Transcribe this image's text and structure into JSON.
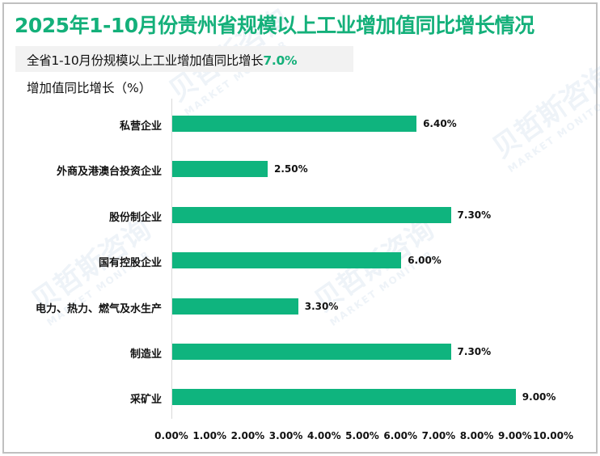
{
  "header": {
    "title": "2025年1-10月份贵州省规模以上工业增加值同比增长情况",
    "subtitle_prefix": "全省1-10月份规模以上工业增加值同比增长",
    "subtitle_value": "7.0%",
    "y_axis_label": "增加值同比增长（%）"
  },
  "watermark": {
    "cn": "贝哲斯咨询",
    "en": "MARKET MONITOR"
  },
  "colors": {
    "title": "#14b07a",
    "bar": "#0fb47e",
    "highlight": "#14b07a"
  },
  "chart_data": {
    "type": "bar",
    "orientation": "horizontal",
    "title": "2025年1-10月份贵州省规模以上工业增加值同比增长情况",
    "subtitle": "全省1-10月份规模以上工业增加值同比增长7.0%",
    "xlabel": "",
    "ylabel": "增加值同比增长（%）",
    "categories": [
      "私营企业",
      "外商及港澳台投资企业",
      "股份制企业",
      "国有控股企业",
      "电力、热力、燃气及水生产",
      "制造业",
      "采矿业"
    ],
    "values": [
      6.4,
      2.5,
      7.3,
      6.0,
      3.3,
      7.3,
      9.0
    ],
    "value_labels": [
      "6.40%",
      "2.50%",
      "7.30%",
      "6.00%",
      "3.30%",
      "7.30%",
      "9.00%"
    ],
    "xlim": [
      0,
      10
    ],
    "x_ticks": [
      "0.00%",
      "1.00%",
      "2.00%",
      "3.00%",
      "4.00%",
      "5.00%",
      "6.00%",
      "7.00%",
      "8.00%",
      "9.00%",
      "10.00%"
    ],
    "grid": false,
    "legend": "none"
  }
}
